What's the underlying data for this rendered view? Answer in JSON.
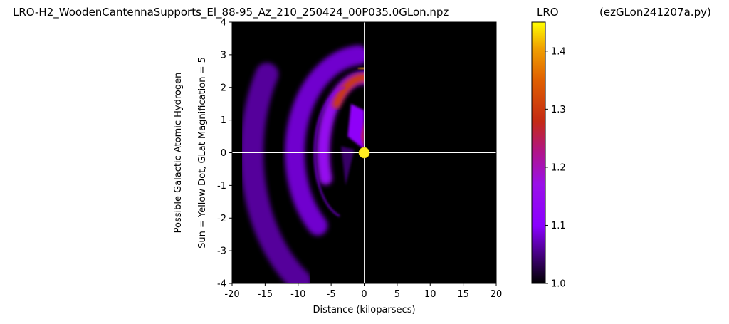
{
  "header": {
    "title": "LRO-H2_WoodenCantennaSupports_El_88-95_Az_210_250424_00P035.0GLon.npz",
    "colorbar_title": "LRO",
    "program": "(ezGLon241207a.py)"
  },
  "chart_data": {
    "type": "heatmap",
    "xlabel": "Distance (kiloparsecs)",
    "ylabel_line1": "Possible Galactic Atomic Hydrogen",
    "ylabel_line2": "Sun = Yellow Dot, GLat Magnification = 5",
    "xlim": [
      -20,
      20
    ],
    "ylim": [
      -4,
      4
    ],
    "x_ticks": [
      -20,
      -15,
      -10,
      -5,
      0,
      5,
      10,
      15,
      20
    ],
    "y_ticks": [
      -4,
      -3,
      -2,
      -1,
      0,
      1,
      2,
      3,
      4
    ],
    "sun": {
      "x": 0,
      "y": 0,
      "color": "#ffee22"
    },
    "crosshair": {
      "x": 0,
      "y": 0,
      "color": "#ffffff"
    },
    "background_color": "#000000",
    "colormap": "gnuplot",
    "colorbar": {
      "label": "LRO",
      "range": [
        1.0,
        1.45
      ],
      "ticks": [
        1.0,
        1.1,
        1.2,
        1.3,
        1.4
      ]
    },
    "features": [
      {
        "name": "outer-arc",
        "kind": "arc",
        "cx": 0,
        "cy": 0,
        "r_kpc": 10.5,
        "ry": 3.0,
        "a0": 95,
        "a1": 228,
        "width_kpc": 3.0,
        "value": 1.08
      },
      {
        "name": "inner-arc",
        "kind": "arc",
        "cx": 0,
        "cy": 0,
        "r_kpc": 6.2,
        "ry": 2.3,
        "a0": 40,
        "a1": 200,
        "width_kpc": 2.0,
        "value": 1.15
      },
      {
        "name": "bright-crest",
        "kind": "arc",
        "cx": 0,
        "cy": 0,
        "r_kpc": 5.5,
        "ry": 2.3,
        "a0": 70,
        "a1": 140,
        "width_kpc": 1.2,
        "value": 1.3
      },
      {
        "name": "hot-peak",
        "kind": "arc",
        "cx": 0,
        "cy": 0,
        "r_kpc": 3.8,
        "ry": 2.6,
        "a0": 80,
        "a1": 100,
        "width_kpc": 0.6,
        "value": 1.4
      },
      {
        "name": "thin-ring",
        "kind": "arc",
        "cx": -2.5,
        "cy": 0,
        "r_kpc": 5.0,
        "ry": 2.0,
        "a0": 95,
        "a1": 255,
        "width_kpc": 0.2,
        "value": 1.1
      },
      {
        "name": "far-lower-arc",
        "kind": "arc",
        "cx": 0,
        "cy": 0,
        "r_kpc": 17,
        "ry": 4.8,
        "a0": 150,
        "a1": 235,
        "width_kpc": 3.5,
        "value": 1.06
      },
      {
        "name": "near-wedge",
        "kind": "wedge",
        "points": [
          [
            -2,
            1.5
          ],
          [
            0,
            1.3
          ],
          [
            0,
            0.1
          ],
          [
            -2.5,
            0.5
          ]
        ],
        "value": 1.12
      },
      {
        "name": "sun-wedge",
        "kind": "wedge",
        "points": [
          [
            0,
            1.0
          ],
          [
            0,
            0.1
          ],
          [
            -0.5,
            0.5
          ]
        ],
        "value": 1.25
      },
      {
        "name": "lower-wedge",
        "kind": "wedge",
        "points": [
          [
            -3.5,
            0.2
          ],
          [
            -1.5,
            0.1
          ],
          [
            -2.8,
            -1.0
          ]
        ],
        "value": 1.04
      }
    ]
  }
}
